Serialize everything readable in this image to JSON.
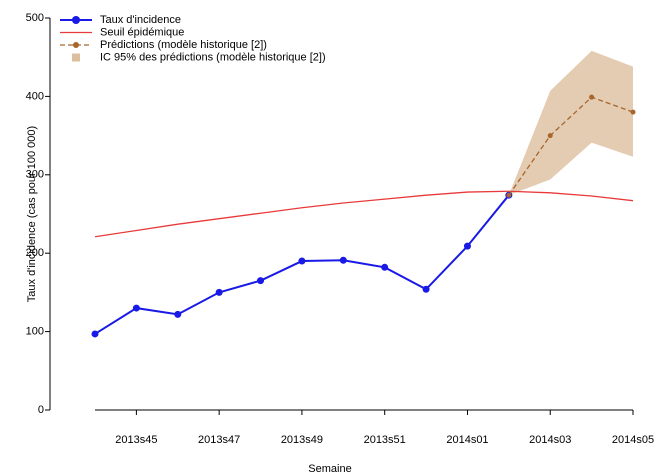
{
  "chart_data": {
    "type": "line",
    "x_label": "Semaine",
    "y_label": "Taux d'incidence (cas pour 100 000)",
    "categories": [
      null,
      "2013s45",
      null,
      "2013s47",
      null,
      "2013s49",
      null,
      "2013s51",
      null,
      "2014s01",
      null,
      "2014s03",
      null,
      "2014s05"
    ],
    "ylim": [
      0,
      500
    ],
    "yticks": [
      0,
      100,
      200,
      300,
      400,
      500
    ],
    "legend": "upper left",
    "series": [
      {
        "name": "Taux d'incidence",
        "color": "#1a1ae6",
        "marker": true,
        "dashed": false,
        "values": [
          97,
          130,
          122,
          150,
          165,
          190,
          191,
          182,
          154,
          209,
          274,
          null,
          null,
          null
        ]
      },
      {
        "name": "Seuil épidémique",
        "color": "#e83a3a",
        "marker": false,
        "dashed": false,
        "values": [
          221,
          229,
          237,
          244,
          251,
          258,
          264,
          269,
          274,
          278,
          279,
          277,
          273,
          267
        ]
      },
      {
        "name": "Prédictions (modèle historique [2])",
        "color": "#a8652c",
        "marker": true,
        "dashed": true,
        "values": [
          null,
          null,
          null,
          null,
          null,
          null,
          null,
          null,
          null,
          null,
          274,
          350,
          399,
          380
        ]
      }
    ],
    "band": {
      "name": "IC 95% des prédictions (modèle historique [2])",
      "color": "#dcbf9e",
      "lower": [
        null,
        null,
        null,
        null,
        null,
        null,
        null,
        null,
        null,
        null,
        274,
        294,
        341,
        323
      ],
      "upper": [
        null,
        null,
        null,
        null,
        null,
        null,
        null,
        null,
        null,
        null,
        274,
        407,
        458,
        438
      ]
    }
  }
}
